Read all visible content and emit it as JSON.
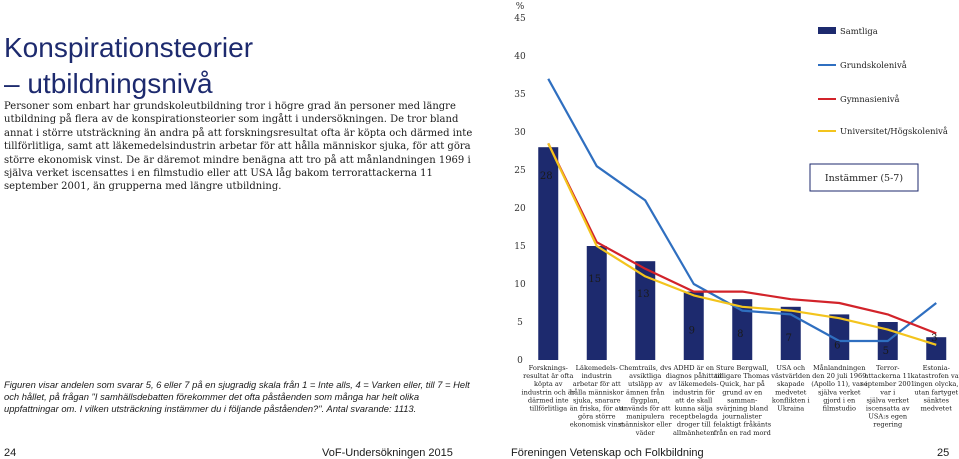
{
  "page": {
    "title_lines": [
      "Konspirationsteorier",
      "– utbildningsnivå"
    ],
    "intro": "Personer som enbart har grundskoleutbildning tror i högre grad än personer med längre utbildning på flera av de konspirationsteorier som ingått i undersökningen. De tror bland annat i större utsträckning än andra på att forskningsresultat ofta är köpta och därmed inte tillförlitliga, samt att läkemedelsindustrin arbetar för att hålla människor sjuka, för att göra större ekonomisk vinst. De är däremot mindre benägna att tro på att månlandningen 1969 i själva verket iscensattes i en filmstudio eller att USA låg bakom terrorattackerna 11 september 2001, än grupperna med längre utbildning.",
    "note": "Figuren visar andelen som svarar 5, 6 eller 7 på en sjugradig skala från 1 = Inte alls, 4 = Varken eller, till 7 = Helt och hållet, på frågan \"I samhällsdebatten förekommer det ofta påståenden som många har helt olika uppfattningar om. I vilken utsträckning instämmer du i följande påståenden?\". Antal svarande: 1113.",
    "footer_left_page": "24",
    "footer_left_text": "VoF-Undersökningen 2015",
    "footer_right_text": "Föreningen Vetenskap och Folkbildning",
    "footer_right_page": "25"
  },
  "chart_data": {
    "type": "bar",
    "y_unit_label": "%",
    "ylim": [
      0,
      45
    ],
    "yticks": [
      0,
      5,
      10,
      15,
      20,
      25,
      30,
      35,
      40,
      45
    ],
    "grid": false,
    "legend_position": "top-right",
    "legend_note": "Instämmer (5-7)",
    "categories": [
      [
        "Forsknings-",
        "resultat är ofta",
        "köpta av",
        "industrin och är",
        "därmed inte",
        "tillförlitliga"
      ],
      [
        "Läkemedels-",
        "industrin",
        "arbetar för att",
        "hålla människor",
        "sjuka, snarare",
        "än friska, för att",
        "göra större",
        "ekonomisk vinst"
      ],
      [
        "Chemtrails, dvs",
        "avsiktliga",
        "utsläpp av",
        "ämnen från",
        "flygplan,",
        "används för att",
        "manipulera",
        "människor eller",
        "väder"
      ],
      [
        "ADHD är en",
        "diagnos påhittad",
        "av läkemedels-",
        "industrin för",
        "att de skall",
        "kunna sälja",
        "receptbelagda",
        "droger till",
        "allmänheten"
      ],
      [
        "Sture Bergwall,",
        "tidigare Thomas",
        "Quick, har på",
        "grund av en",
        "samman-",
        "svärjning bland",
        "journalister",
        "felaktigt fråkänts",
        "från en rad mord"
      ],
      [
        "USA och",
        "västvärlden",
        "skapade",
        "medvetet",
        "konflikten i",
        "Ukraina"
      ],
      [
        "Månlandningen",
        "den 20 juli 1969",
        "(Apollo 11), var i",
        "själva verket",
        "gjord i en",
        "filmstudio"
      ],
      [
        "Terror-",
        "attackerna 11",
        "september 2001",
        "var i",
        "själva verket",
        "iscensatta av",
        "USA:s egen",
        "regering"
      ],
      [
        "Estonia-",
        "katastrofen var",
        "ingen olycka,",
        "utan fartyget",
        "sänktes",
        "medvetet"
      ]
    ],
    "series": [
      {
        "name": "Samtliga",
        "type": "bar",
        "color": "#1d2a6e",
        "values": [
          28,
          15,
          13,
          9,
          8,
          7,
          6,
          5,
          3
        ]
      },
      {
        "name": "Grundskolenivå",
        "type": "line",
        "color": "#2f6fc0",
        "values": [
          37,
          25.5,
          21,
          10,
          6.5,
          6,
          2.5,
          2.5,
          7.5
        ]
      },
      {
        "name": "Gymnasienivå",
        "type": "line",
        "color": "#d2232a",
        "values": [
          28.5,
          15.5,
          12,
          9,
          9,
          8,
          7.5,
          6,
          3.5
        ]
      },
      {
        "name": "Universitet/Högskolenivå",
        "type": "line",
        "color": "#f3c41d",
        "values": [
          28.5,
          15,
          11,
          8.5,
          7,
          6.5,
          5.5,
          4,
          2
        ]
      }
    ]
  }
}
